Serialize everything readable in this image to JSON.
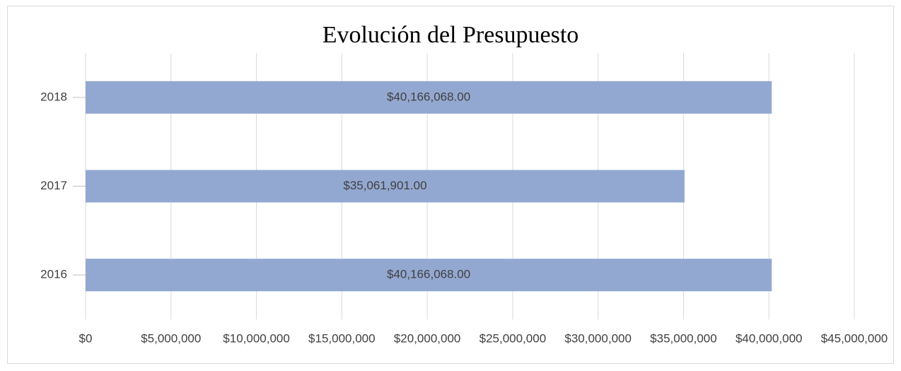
{
  "chart_data": {
    "type": "bar",
    "orientation": "horizontal",
    "title": "Evolución del Presupuesto",
    "categories": [
      "2016",
      "2017",
      "2018"
    ],
    "values": [
      40166068,
      35061901,
      40166068
    ],
    "value_labels": [
      "$40,166,068.00",
      "$35,061,901.00",
      "$40,166,068.00"
    ],
    "color": "#93a8d1",
    "xlim": [
      0,
      45000000
    ],
    "xticks": [
      {
        "value": 0,
        "label": "$0"
      },
      {
        "value": 5000000,
        "label": "$5,000,000"
      },
      {
        "value": 10000000,
        "label": "$10,000,000"
      },
      {
        "value": 15000000,
        "label": "$15,000,000"
      },
      {
        "value": 20000000,
        "label": "$20,000,000"
      },
      {
        "value": 25000000,
        "label": "$25,000,000"
      },
      {
        "value": 30000000,
        "label": "$30,000,000"
      },
      {
        "value": 35000000,
        "label": "$35,000,000"
      },
      {
        "value": 40000000,
        "label": "$40,000,000"
      },
      {
        "value": 45000000,
        "label": "$45,000,000"
      }
    ],
    "grid": true
  }
}
